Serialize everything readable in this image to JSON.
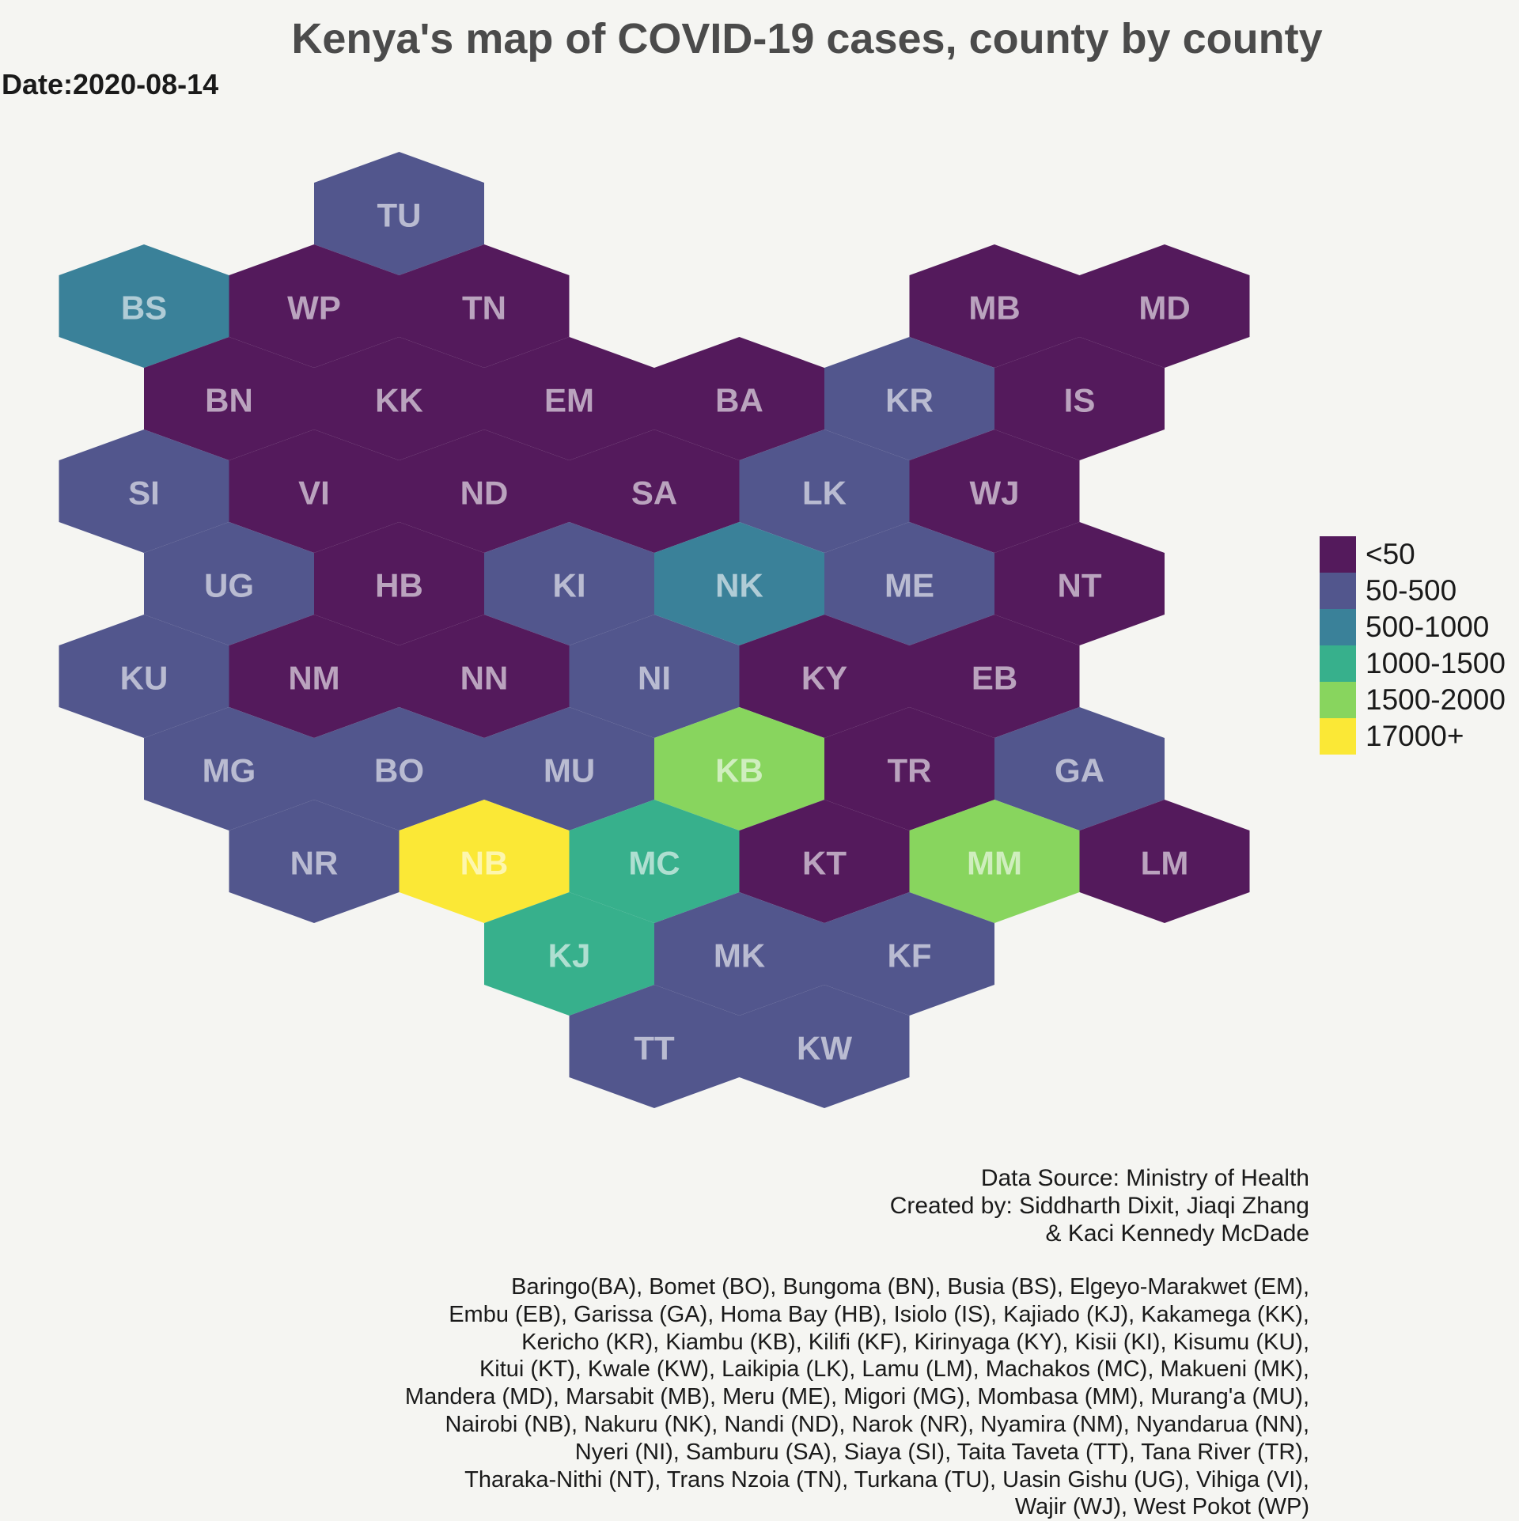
{
  "title": "Kenya's map of COVID-19 cases, county by county",
  "subtitle": "Date:2020-08-14",
  "colors": {
    "<50": "#541a5c",
    "50-500": "#52568d",
    "500-1000": "#3a8199",
    "1000-1500": "#37b08c",
    "1500-2000": "#88d55e",
    "17000+": "#fbe836"
  },
  "legend": [
    "<50",
    "50-500",
    "500-1000",
    "1000-1500",
    "1500-2000",
    "17000+"
  ],
  "counties": [
    {
      "code": "TU",
      "row": 0,
      "col": 1,
      "category": "50-500"
    },
    {
      "code": "BS",
      "row": 1,
      "col": 0,
      "category": "500-1000"
    },
    {
      "code": "WP",
      "row": 1,
      "col": 1,
      "category": "<50"
    },
    {
      "code": "TN",
      "row": 1,
      "col": 2,
      "category": "<50"
    },
    {
      "code": "MB",
      "row": 1,
      "col": 5,
      "category": "<50"
    },
    {
      "code": "MD",
      "row": 1,
      "col": 6,
      "category": "<50"
    },
    {
      "code": "BN",
      "row": 2,
      "col": 0,
      "category": "<50"
    },
    {
      "code": "KK",
      "row": 2,
      "col": 1,
      "category": "<50"
    },
    {
      "code": "EM",
      "row": 2,
      "col": 2,
      "category": "<50"
    },
    {
      "code": "BA",
      "row": 2,
      "col": 3,
      "category": "<50"
    },
    {
      "code": "KR",
      "row": 2,
      "col": 4,
      "category": "50-500"
    },
    {
      "code": "IS",
      "row": 2,
      "col": 5,
      "category": "<50"
    },
    {
      "code": "SI",
      "row": 3,
      "col": 0,
      "category": "50-500"
    },
    {
      "code": "VI",
      "row": 3,
      "col": 1,
      "category": "<50"
    },
    {
      "code": "ND",
      "row": 3,
      "col": 2,
      "category": "<50"
    },
    {
      "code": "SA",
      "row": 3,
      "col": 3,
      "category": "<50"
    },
    {
      "code": "LK",
      "row": 3,
      "col": 4,
      "category": "50-500"
    },
    {
      "code": "WJ",
      "row": 3,
      "col": 5,
      "category": "<50"
    },
    {
      "code": "UG",
      "row": 4,
      "col": 0,
      "category": "50-500"
    },
    {
      "code": "HB",
      "row": 4,
      "col": 1,
      "category": "<50"
    },
    {
      "code": "KI",
      "row": 4,
      "col": 2,
      "category": "50-500"
    },
    {
      "code": "NK",
      "row": 4,
      "col": 3,
      "category": "500-1000"
    },
    {
      "code": "ME",
      "row": 4,
      "col": 4,
      "category": "50-500"
    },
    {
      "code": "NT",
      "row": 4,
      "col": 5,
      "category": "<50"
    },
    {
      "code": "KU",
      "row": 5,
      "col": 0,
      "category": "50-500"
    },
    {
      "code": "NM",
      "row": 5,
      "col": 1,
      "category": "<50"
    },
    {
      "code": "NN",
      "row": 5,
      "col": 2,
      "category": "<50"
    },
    {
      "code": "NI",
      "row": 5,
      "col": 3,
      "category": "50-500"
    },
    {
      "code": "KY",
      "row": 5,
      "col": 4,
      "category": "<50"
    },
    {
      "code": "EB",
      "row": 5,
      "col": 5,
      "category": "<50"
    },
    {
      "code": "MG",
      "row": 6,
      "col": 0,
      "category": "50-500"
    },
    {
      "code": "BO",
      "row": 6,
      "col": 1,
      "category": "50-500"
    },
    {
      "code": "MU",
      "row": 6,
      "col": 2,
      "category": "50-500"
    },
    {
      "code": "KB",
      "row": 6,
      "col": 3,
      "category": "1500-2000"
    },
    {
      "code": "TR",
      "row": 6,
      "col": 4,
      "category": "<50"
    },
    {
      "code": "GA",
      "row": 6,
      "col": 5,
      "category": "50-500"
    },
    {
      "code": "NR",
      "row": 7,
      "col": 1,
      "category": "50-500"
    },
    {
      "code": "NB",
      "row": 7,
      "col": 2,
      "category": "17000+"
    },
    {
      "code": "MC",
      "row": 7,
      "col": 3,
      "category": "1000-1500"
    },
    {
      "code": "KT",
      "row": 7,
      "col": 4,
      "category": "<50"
    },
    {
      "code": "MM",
      "row": 7,
      "col": 5,
      "category": "1500-2000"
    },
    {
      "code": "LM",
      "row": 7,
      "col": 6,
      "category": "<50"
    },
    {
      "code": "KJ",
      "row": 8,
      "col": 2,
      "category": "1000-1500"
    },
    {
      "code": "MK",
      "row": 8,
      "col": 3,
      "category": "50-500"
    },
    {
      "code": "KF",
      "row": 8,
      "col": 4,
      "category": "50-500"
    },
    {
      "code": "TT",
      "row": 9,
      "col": 3,
      "category": "50-500"
    },
    {
      "code": "KW",
      "row": 9,
      "col": 4,
      "category": "50-500"
    }
  ],
  "caption": [
    "Data Source: Ministry of Health",
    "Created by: Siddharth Dixit, Jiaqi Zhang",
    "& Kaci Kennedy McDade"
  ],
  "note": [
    "Baringo(BA), Bomet (BO), Bungoma (BN), Busia (BS), Elgeyo-Marakwet (EM),",
    "Embu (EB), Garissa (GA), Homa Bay (HB), Isiolo (IS), Kajiado (KJ), Kakamega (KK),",
    "Kericho (KR), Kiambu (KB), Kilifi (KF), Kirinyaga (KY), Kisii (KI), Kisumu (KU),",
    "Kitui (KT), Kwale (KW), Laikipia (LK), Lamu (LM), Machakos (MC), Makueni (MK),",
    "Mandera (MD), Marsabit (MB), Meru (ME), Migori (MG), Mombasa (MM), Murang'a (MU),",
    "Nairobi (NB), Nakuru (NK), Nandi (ND), Narok (NR), Nyamira (NM), Nyandarua (NN),",
    "Nyeri (NI), Samburu (SA), Siaya (SI), Taita Taveta (TT), Tana River (TR),",
    "Tharaka-Nithi (NT), Trans Nzoia (TN), Turkana (TU), Uasin Gishu (UG), Vihiga (VI),",
    "Wajir (WJ), West Pokot (WP)"
  ]
}
